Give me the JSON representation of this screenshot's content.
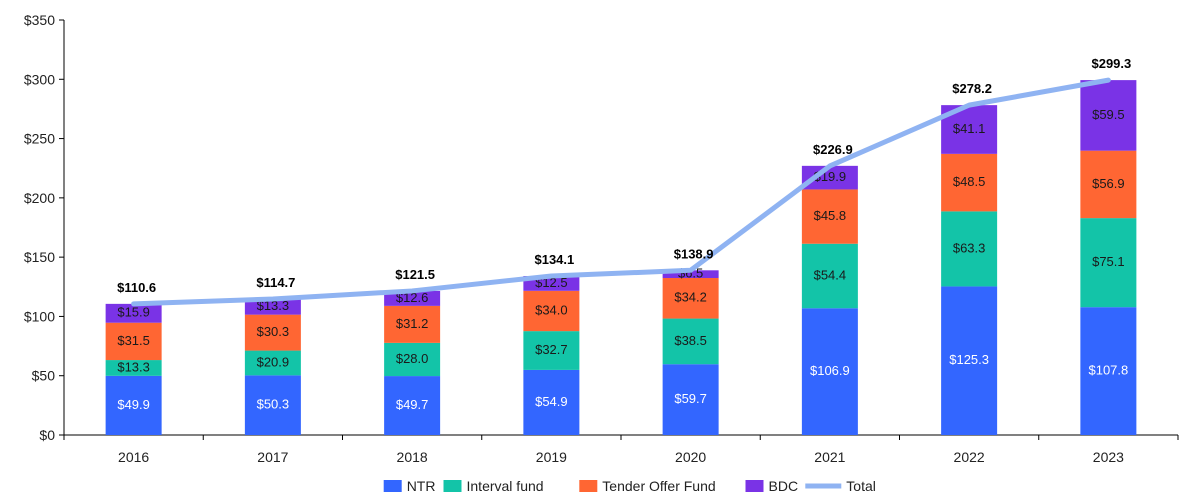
{
  "chart_data": {
    "type": "bar",
    "stacked": true,
    "categories": [
      "2016",
      "2017",
      "2018",
      "2019",
      "2020",
      "2021",
      "2022",
      "2023"
    ],
    "series": [
      {
        "name": "NTR",
        "values": [
          49.9,
          50.3,
          49.7,
          54.9,
          59.7,
          106.9,
          125.3,
          107.8
        ],
        "labels": [
          "$49.9",
          "$50.3",
          "$49.7",
          "$54.9",
          "$59.7",
          "$106.9",
          "$125.3",
          "$107.8"
        ],
        "color": "#3366ff"
      },
      {
        "name": "Interval fund",
        "values": [
          13.3,
          20.9,
          28.0,
          32.7,
          38.5,
          54.4,
          63.3,
          75.1
        ],
        "labels": [
          "$13.3",
          "$20.9",
          "$28.0",
          "$32.7",
          "$38.5",
          "$54.4",
          "$63.3",
          "$75.1"
        ],
        "color": "#13c4a8"
      },
      {
        "name": "Tender Offer Fund",
        "values": [
          31.5,
          30.3,
          31.2,
          34.0,
          34.2,
          45.8,
          48.5,
          56.9
        ],
        "labels": [
          "$31.5",
          "$30.3",
          "$31.2",
          "$34.0",
          "$34.2",
          "$45.8",
          "$48.5",
          "$56.9"
        ],
        "color": "#ff6633"
      },
      {
        "name": "BDC",
        "values": [
          15.9,
          13.3,
          12.6,
          12.5,
          6.5,
          19.9,
          41.1,
          59.5
        ],
        "labels": [
          "$15.9",
          "$13.3",
          "$12.6",
          "$12.5",
          "$6.5",
          "$19.9",
          "$41.1",
          "$59.5"
        ],
        "color": "#7a33e6"
      }
    ],
    "total": {
      "name": "Total",
      "values": [
        110.6,
        114.7,
        121.5,
        134.1,
        138.9,
        226.9,
        278.2,
        299.3
      ],
      "labels": [
        "$110.6",
        "$114.7",
        "$121.5",
        "$134.1",
        "$138.9",
        "$226.9",
        "$278.2",
        "$299.3"
      ],
      "color": "#8fb3f2"
    },
    "ylim": [
      0,
      350
    ],
    "yticks": [
      0,
      50,
      100,
      150,
      200,
      250,
      300,
      350
    ],
    "ytick_labels": [
      "$0",
      "$50",
      "$100",
      "$150",
      "$200",
      "$250",
      "$300",
      "$350"
    ],
    "grid": false,
    "legend_position": "bottom-center",
    "legend": [
      {
        "name": "NTR",
        "kind": "box",
        "color": "#3366ff"
      },
      {
        "name": "Interval fund",
        "kind": "box",
        "color": "#13c4a8"
      },
      {
        "name": "Tender Offer Fund",
        "kind": "box",
        "color": "#ff6633"
      },
      {
        "name": "BDC",
        "kind": "box",
        "color": "#7a33e6"
      },
      {
        "name": "Total",
        "kind": "line",
        "color": "#8fb3f2"
      }
    ]
  }
}
